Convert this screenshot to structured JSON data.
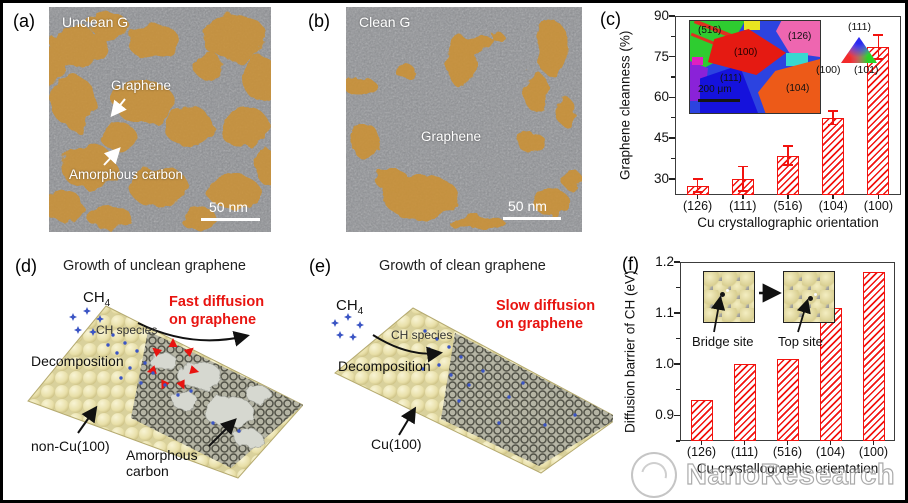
{
  "figure": {
    "panel_labels": {
      "a": "(a)",
      "b": "(b)",
      "c": "(c)",
      "d": "(d)",
      "e": "(e)",
      "f": "(f)"
    }
  },
  "watermark": {
    "text": "NanoResearch"
  },
  "chart_data": [
    {
      "type": "bar",
      "categories": [
        "(126)",
        "(111)",
        "(516)",
        "(104)",
        "(100)"
      ],
      "values": [
        27.5,
        30,
        38.5,
        52.5,
        78.5
      ],
      "errors": [
        2.5,
        4.5,
        3.5,
        2.5,
        4.5
      ],
      "title": "",
      "xlabel": "Cu crystallographic orientation",
      "ylabel": "Graphene cleanness (%)",
      "ylim": [
        24,
        90
      ],
      "yticks": [
        30,
        45,
        60,
        75,
        90
      ],
      "ytick_labels": [
        "30",
        "45",
        "60",
        "75",
        "90"
      ],
      "bar_color": "#f2130f",
      "hatch": "///",
      "grid": false,
      "legend": "none"
    },
    {
      "type": "bar",
      "categories": [
        "(126)",
        "(111)",
        "(516)",
        "(104)",
        "(100)"
      ],
      "values": [
        0.93,
        1.0,
        1.01,
        1.11,
        1.18
      ],
      "title": "",
      "xlabel": "Cu crystallographic orientation",
      "ylabel": "Diffusion barrier of CH (eV)",
      "ylim": [
        0.85,
        1.2
      ],
      "yticks": [
        0.9,
        1.0,
        1.1,
        1.2
      ],
      "ytick_labels": [
        "0.9",
        "1.0",
        "1.1",
        "1.2"
      ],
      "bar_color": "#f2130f",
      "hatch": "///",
      "grid": false,
      "legend": "none"
    }
  ],
  "panels": {
    "a": {
      "title": "Unclean G",
      "graphene_label": "Graphene",
      "amorphous_label": "Amorphous carbon",
      "scale_bar": "50 nm"
    },
    "b": {
      "title": "Clean G",
      "graphene_label": "Graphene",
      "scale_bar": "50 nm"
    },
    "c": {
      "inset": {
        "labels": {
          "r516": "(516)",
          "r100": "(100)",
          "r126": "(126)",
          "r111": "(111)",
          "r104": "(104)"
        },
        "scale_bar": "200 μm"
      },
      "ipf_triangle": {
        "top": "(111)",
        "bottom_left": "(100)",
        "bottom_right": "(101)"
      }
    },
    "d": {
      "title": "Growth of unclean graphene",
      "ch4": "CH",
      "ch4_sub": "4",
      "decomposition": "Decomposition",
      "ch_species": "CH species",
      "diffusion_note": "Fast diffusion\non graphene",
      "substrate_label": "non-Cu(100)",
      "amorphous_label": "Amorphous\ncarbon"
    },
    "e": {
      "title": "Growth of clean graphene",
      "ch4": "CH",
      "ch4_sub": "4",
      "decomposition": "Decomposition",
      "ch_species": "CH species",
      "diffusion_note": "Slow diffusion\non graphene",
      "substrate_label": "Cu(100)"
    },
    "f": {
      "inset": {
        "bridge_label": "Bridge site",
        "top_label": "Top site"
      }
    }
  }
}
